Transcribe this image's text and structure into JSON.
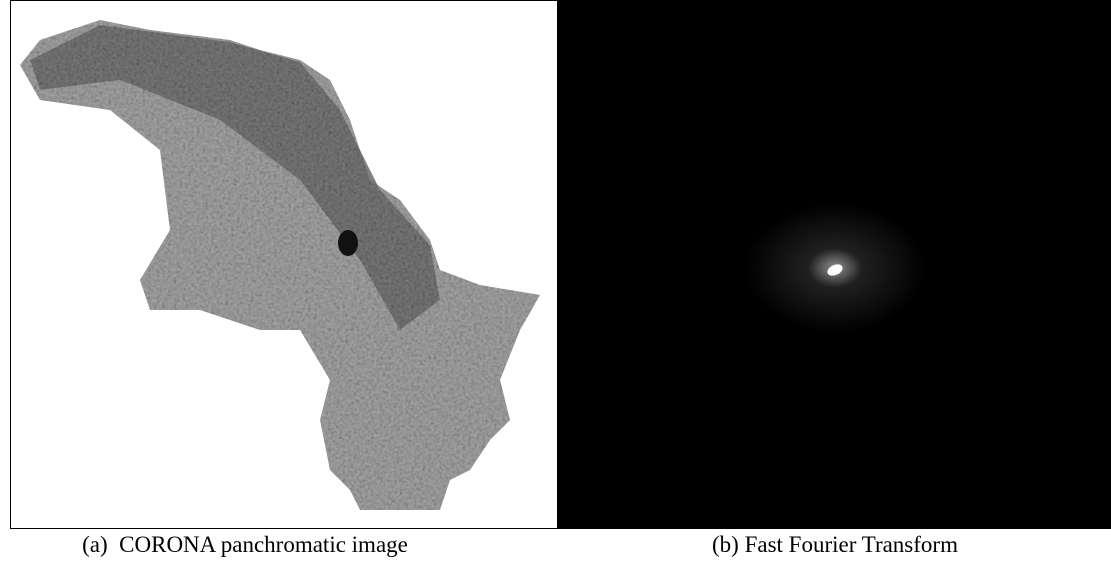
{
  "figure": {
    "panels": [
      {
        "caption": "(a)  CORONA panchromatic image"
      },
      {
        "caption": "(b) Fast Fourier Transform"
      }
    ]
  }
}
